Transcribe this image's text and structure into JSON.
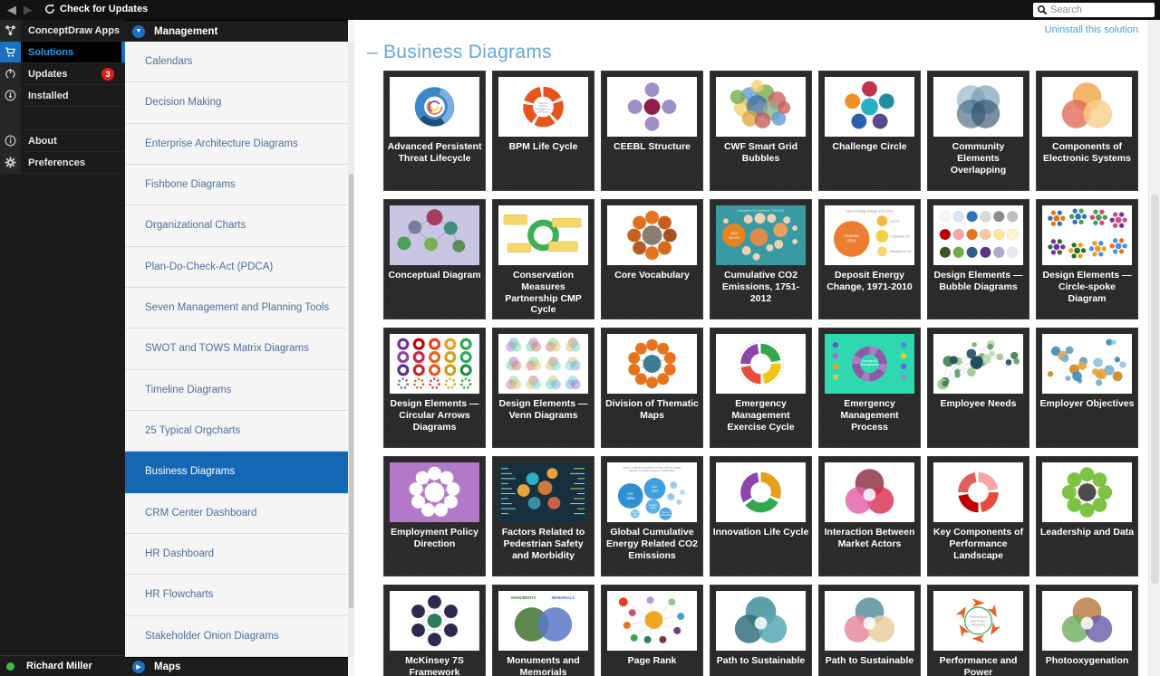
{
  "topbar": {
    "check_updates_label": "Check for Updates",
    "search_placeholder": "Search"
  },
  "app_nav": {
    "items": [
      {
        "label": "ConceptDraw Apps",
        "icon": "apps-icon",
        "group": "top",
        "selected": false
      },
      {
        "label": "Solutions",
        "icon": "cart-icon",
        "group": "top",
        "selected": true
      },
      {
        "label": "Updates",
        "icon": "update-icon",
        "group": "top",
        "selected": false,
        "badge": "3"
      },
      {
        "label": "Installed",
        "icon": "download-icon",
        "group": "top",
        "selected": false
      },
      {
        "label": "About",
        "icon": "info-icon",
        "group": "bottom",
        "selected": false
      },
      {
        "label": "Preferences",
        "icon": "gear-icon",
        "group": "bottom",
        "selected": false
      }
    ],
    "user": {
      "name": "Richard Miller",
      "status_color": "#3dbb3d"
    }
  },
  "solution_nav": {
    "header_label": "Management",
    "footer_label": "Maps",
    "selected": "Business Diagrams",
    "items": [
      "Calendars",
      "Decision Making",
      "Enterprise Architecture Diagrams",
      "Fishbone Diagrams",
      "Organizational Charts",
      "Plan-Do-Check-Act (PDCA)",
      "Seven Management and Planning Tools",
      "SWOT and TOWS Matrix Diagrams",
      "Timeline Diagrams",
      "25 Typical Orgcharts",
      "Business Diagrams",
      "CRM Center Dashboard",
      "HR Dashboard",
      "HR Flowcharts",
      "Stakeholder Onion Diagrams"
    ]
  },
  "main": {
    "uninstall_link": "Uninstall this solution",
    "section_prefix": "–",
    "section_title": "Business Diagrams",
    "cards": [
      {
        "label": "Advanced Persistent Threat Lifecycle",
        "thumb": {
          "type": "apt",
          "bg": "#ffffff",
          "colors": [
            "#3b87c8",
            "#7ab0e0",
            "#1f4e79",
            "#ed7d31",
            "#7030a0",
            "#ffc000"
          ]
        }
      },
      {
        "label": "BPM Life Cycle",
        "thumb": {
          "type": "ring",
          "bg": "#ffffff",
          "colors": [
            "#e8541d"
          ],
          "segments": 5,
          "center_text": "Business\nProcess\nManagement\nLife-Cycle"
        }
      },
      {
        "label": "CEEBL Structure",
        "thumb": {
          "type": "radial",
          "bg": "#ffffff",
          "n": 4,
          "layout": "cross",
          "center": "#8e1f4b",
          "sat": [
            "#9f8fc7"
          ],
          "orbit": 19,
          "satR": 8,
          "centerR": 9
        }
      },
      {
        "label": "CWF Smart Grid Bubbles",
        "thumb": {
          "type": "cluster",
          "bg": "#ffffff",
          "colors": [
            "#5b9bd5",
            "#70ad47",
            "#cc5c5c",
            "#f5cf6e",
            "#44729e",
            "#86b386",
            "#e0a83c",
            "#c55a5a"
          ]
        }
      },
      {
        "label": "Challenge Circle",
        "thumb": {
          "type": "radial",
          "bg": "#ffffff",
          "n": 5,
          "center": "#2ab0c5",
          "sat": [
            "#c0314b",
            "#1d8f9e",
            "#5b4a8e",
            "#2c5fb0",
            "#f09122"
          ],
          "orbit": 20,
          "satR": 8.5,
          "centerR": 9.5
        }
      },
      {
        "label": "Community Elements Overlapping",
        "thumb": {
          "type": "venn",
          "bg": "#ffffff",
          "op": 0.65,
          "circles": [
            [
              42,
              25,
              16,
              "#8fb0c4"
            ],
            [
              58,
              25,
              16,
              "#6f98b2"
            ],
            [
              42,
              41,
              16,
              "#41657e"
            ],
            [
              58,
              41,
              16,
              "#33526b"
            ]
          ]
        }
      },
      {
        "label": "Components of Electronic Systems",
        "thumb": {
          "type": "venn",
          "bg": "#ffffff",
          "op": 0.8,
          "circles": [
            [
              50,
              22,
              16,
              "#f2a444"
            ],
            [
              38,
              41,
              16,
              "#e46c5a"
            ],
            [
              62,
              41,
              16,
              "#f7d08a"
            ]
          ]
        }
      },
      {
        "label": "Conceptual Diagram",
        "thumb": {
          "type": "tree",
          "bg": "#c9c6e3",
          "colors": [
            "#a63d5f",
            "#7a7a9d",
            "#3f8f7f",
            "#4aa05f",
            "#77b055",
            "#5a8f5a"
          ]
        }
      },
      {
        "label": "Conservation Measures Partnership CMP Cycle",
        "thumb": {
          "type": "cycle",
          "bg": "#ffffff",
          "colors": [
            "#3bb054",
            "#f5d76e"
          ]
        }
      },
      {
        "label": "Core Vocabulary",
        "thumb": {
          "type": "radial",
          "bg": "#ffffff",
          "n": 8,
          "center": "#8a7d72",
          "sat": [
            "#e8731c",
            "#c95c1e",
            "#a8521f",
            "#d86a1e",
            "#e8731c",
            "#b85a1e",
            "#c9621e",
            "#e07020"
          ],
          "orbit": 20,
          "satR": 7.5,
          "centerR": 11
        }
      },
      {
        "label": "Cumulative CO2 Emissions, 1751-2012",
        "thumb": {
          "type": "bubbles",
          "bg": "#3a9aa3",
          "title": "Cumulative CO₂ emissions, 1751-2012",
          "title_color": "#ffffff",
          "circles": [
            [
              20,
              33,
              13,
              "#e8821e",
              "USA\n26.0%",
              "#ffffff"
            ],
            [
              48,
              35,
              10,
              "#dd8a4a"
            ],
            [
              72,
              27,
              8,
              "#e8a05a"
            ],
            [
              36,
              15,
              5,
              "#ecd2b4"
            ],
            [
              49,
              14,
              6,
              "#ecd2b4"
            ],
            [
              62,
              14,
              5,
              "#ecd2b4"
            ],
            [
              79,
              16,
              4,
              "#ecd2b4"
            ],
            [
              88,
              25,
              3,
              "#ecd2b4"
            ],
            [
              34,
              50,
              5,
              "#ecd2b4"
            ],
            [
              60,
              47,
              4,
              "#ecd2b4"
            ],
            [
              45,
              57,
              4,
              "#ecd2b4"
            ],
            [
              88,
              40,
              3,
              "#ecd2b4"
            ],
            [
              11,
              17,
              3,
              "#ecd2b4"
            ],
            [
              70,
              43,
              5,
              "#ecd2b4"
            ]
          ]
        }
      },
      {
        "label": "Deposit Energy Change, 1971-2010",
        "thumb": {
          "type": "bigsmall",
          "bg": "#ffffff",
          "title": "Deposit energy change, 1971-2010",
          "big": {
            "color": "#ed7d31",
            "label": "Oceans\n93%"
          },
          "smalls": [
            {
              "color": "#f5b942",
              "label": "Ice 3%"
            },
            {
              "color": "#f5cf42",
              "label": "Continents 3%"
            },
            {
              "color": "#f5d76e",
              "label": "Atmosphere 1%"
            }
          ]
        }
      },
      {
        "label": "Design Elements — Bubble Diagrams",
        "thumb": {
          "type": "bubblegrid",
          "bg": "#ffffff",
          "rows": [
            [
              "#f7f7f7",
              "#d6e8f7",
              "#2e74b5",
              "#d9d9d9",
              "#8c8c8c",
              "#bfbfbf"
            ],
            [
              "#c00000",
              "#f4a6a6",
              "#e8731c",
              "#f7c89a",
              "#ffe699",
              "#fff2cc"
            ],
            [
              "#375623",
              "#70ad47",
              "#2e5e8c",
              "#5a3286",
              "#b4a7d6",
              "#e8e8f5"
            ]
          ]
        }
      },
      {
        "label": "Design Elements — Circle-spoke Diagram",
        "thumb": {
          "type": "dotclusters",
          "bg": "#ffffff",
          "colors": [
            "#e8731c",
            "#2e74b5",
            "#46a049",
            "#d4447c",
            "#7030a0",
            "#2f6f1f",
            "#e8a01c",
            "#4a90d9"
          ]
        }
      },
      {
        "label": "Design Elements — Circular Arrows Diagrams",
        "thumb": {
          "type": "ringgrid",
          "bg": "#ffffff",
          "colors": [
            "#7030a0",
            "#c00000",
            "#e8421c",
            "#e8a01c",
            "#2fa84f",
            "#8e44ad",
            "#d91e4a",
            "#e8641c",
            "#d4a017",
            "#27ae60",
            "#5a2d8e",
            "#c02a2a",
            "#e85a1c",
            "#c9a01c",
            "#1f8f3f",
            "#7a7a7a",
            "#d96a2a",
            "#c94a4a",
            "#caa62a",
            "#2fa84f"
          ]
        }
      },
      {
        "label": "Design Elements — Venn Diagrams",
        "thumb": {
          "type": "venngrid",
          "bg": "#ffffff",
          "colors": [
            "#7fb2d9",
            "#b07fd9",
            "#7fd9a8",
            "#d97f7f",
            "#d9c97f",
            "#7fd9d9"
          ]
        }
      },
      {
        "label": "Division of Thematic Maps",
        "thumb": {
          "type": "radial",
          "bg": "#ffffff",
          "n": 10,
          "center": "#3a7d8c",
          "sat": [
            "#e8731c"
          ],
          "orbit": 21,
          "satR": 6.5,
          "centerR": 10
        }
      },
      {
        "label": "Emergency Management Exercise Cycle",
        "thumb": {
          "type": "ring",
          "bg": "#ffffff",
          "colors": [
            "#2fa84f",
            "#f0c419",
            "#e84c3d",
            "#8e44ad"
          ],
          "segments": 4,
          "dotring": true
        }
      },
      {
        "label": "Emergency Management Process",
        "thumb": {
          "type": "purplering",
          "bg": "#2ed9b0",
          "colors": [
            "#8e5aa8",
            "#a87ec2"
          ],
          "center_text": "Emergency\nManagement"
        }
      },
      {
        "label": "Employee Needs",
        "thumb": {
          "type": "scatter",
          "bg": "#ffffff",
          "colors": [
            "#6fae5f",
            "#9cc98a",
            "#3f7d52",
            "#1d4f5e",
            "#b9d9a8",
            "#5a9e6f"
          ],
          "n": 24,
          "seed": 7,
          "links": true,
          "centerBig": "#1d4f5e"
        }
      },
      {
        "label": "Employer Objectives",
        "thumb": {
          "type": "scatter",
          "bg": "#ffffff",
          "colors": [
            "#6fb3d9",
            "#3f89b5",
            "#e8a23c",
            "#c9861f",
            "#8fc3e0",
            "#5aa0c9"
          ],
          "n": 22,
          "seed": 11,
          "links": false
        }
      },
      {
        "label": "Employment Policy Direction",
        "thumb": {
          "type": "radial",
          "bg": "#b279c9",
          "n": 9,
          "center": "#ffffff",
          "sat": [
            "#ffffff"
          ],
          "orbit": 21,
          "satR": 7.5,
          "centerR": 11,
          "line": "#e8d5f0"
        }
      },
      {
        "label": "Factors Related to Pedestrian Safety and Morbidity",
        "thumb": {
          "type": "darkscatter",
          "bg": "#16303e",
          "colors": [
            "#2ab0c5",
            "#e8a23c",
            "#c97a3c",
            "#3a8fa3",
            "#c9604a",
            "#e8a23c"
          ]
        }
      },
      {
        "label": "Global Cumulative Energy Related CO2 Emissions",
        "thumb": {
          "type": "bubbles",
          "bg": "#ffffff",
          "title": "Share of global cumulative energy related carbon\ndioxide emissions between 1850-2007",
          "title_color": "#8a8a8a",
          "circles": [
            [
              26,
              37,
              14,
              "#2e8fd0",
              "US:\n28%",
              "#ffffff"
            ],
            [
              53,
              29,
              12,
              "#3da0dc",
              "EU:\n23%",
              "#ffffff"
            ],
            [
              51,
              49,
              8,
              "#5ab0e0",
              "Russia\n11%",
              "#ffffff"
            ],
            [
              31,
              57,
              5,
              "#7ac0e8",
              "China\n9%",
              "#ffffff"
            ],
            [
              65,
              57,
              7,
              "#4aa8dc",
              "Rest of\nworld 18%",
              "#ffffff"
            ],
            [
              71,
              38,
              4,
              "#8fc8ec"
            ],
            [
              80,
              44,
              3,
              "#a8d4f0"
            ],
            [
              74,
              25,
              4,
              "#98cce8"
            ],
            [
              84,
              33,
              3,
              "#b8dcf4"
            ]
          ]
        }
      },
      {
        "label": "Innovation Life Cycle",
        "thumb": {
          "type": "ring",
          "bg": "#ffffff",
          "colors": [
            "#e8a01c",
            "#2fa84f",
            "#8e44ad"
          ],
          "segments": 3
        }
      },
      {
        "label": "Interaction Between Market Actors",
        "thumb": {
          "type": "venn",
          "bg": "#ffffff",
          "op": 0.82,
          "centerWhite": true,
          "circles": [
            [
              50,
              23,
              16,
              "#8c2f3f"
            ],
            [
              62,
              42,
              15,
              "#d93050"
            ],
            [
              38,
              42,
              15,
              "#e060a8"
            ]
          ]
        }
      },
      {
        "label": "Key Components of Performance Landscape",
        "thumb": {
          "type": "ring",
          "bg": "#ffffff",
          "colors": [
            "#f4a6a6",
            "#e84c3d",
            "#c00000",
            "#e06060"
          ],
          "segments": 4
        }
      },
      {
        "label": "Leadership and Data",
        "thumb": {
          "type": "radial",
          "bg": "#ffffff",
          "n": 8,
          "center": "#4d4d4d",
          "sat": [
            "#7dc242"
          ],
          "orbit": 20,
          "satR": 8,
          "centerR": 10
        }
      },
      {
        "label": "McKinsey 7S Framework",
        "thumb": {
          "type": "mesh",
          "bg": "#ffffff",
          "n": 6,
          "center": "#2f7d5f",
          "sat": "#2e2a4f"
        }
      },
      {
        "label": "Monuments and Memorials",
        "thumb": {
          "type": "venn2",
          "bg": "#ffffff",
          "colors": [
            "#4e7d3f",
            "#5a78c9"
          ],
          "headers": [
            "MONUMENTS",
            "MEMORIALS"
          ],
          "headerColors": [
            "#3f7d2f",
            "#4a6ad9"
          ]
        }
      },
      {
        "label": "Page Rank",
        "thumb": {
          "type": "star",
          "bg": "#ffffff",
          "center": "#f0a822",
          "colors": [
            "#e8421c",
            "#c05a7a",
            "#e8731c",
            "#2fa84f",
            "#2f7d5f",
            "#7d2f4f",
            "#6a3f8e",
            "#46a0c9",
            "#8fc98a",
            "#b49ad9"
          ]
        }
      },
      {
        "label": "Path to Sustainable",
        "thumb": {
          "type": "venn",
          "bg": "#ffffff",
          "op": 0.85,
          "centerWhite": true,
          "circles": [
            [
              50,
              23,
              17,
              "#3f8f9e"
            ],
            [
              37,
              42,
              16,
              "#35707f"
            ],
            [
              63,
              42,
              16,
              "#58a8b5"
            ]
          ]
        }
      },
      {
        "label": "Path to Sustainable",
        "thumb": {
          "type": "venn",
          "bg": "#ffffff",
          "op": 0.85,
          "centerWhite": true,
          "circles": [
            [
              50,
              23,
              16,
              "#5a8f9c"
            ],
            [
              37,
              42,
              15,
              "#e88a9c"
            ],
            [
              63,
              42,
              15,
              "#e8cfa0"
            ]
          ]
        }
      },
      {
        "label": "Performance and Power",
        "thumb": {
          "type": "arrowcycle",
          "bg": "#ffffff",
          "color": "#f05a22",
          "ringColor": "#2fa84f",
          "center_text": "Performance\nand Power\nModeling"
        }
      },
      {
        "label": "Photooxygenation",
        "thumb": {
          "type": "venn",
          "bg": "#ffffff",
          "op": 0.8,
          "centerWhite": true,
          "circles": [
            [
              50,
              23,
              16,
              "#b5773f"
            ],
            [
              37,
              42,
              15,
              "#6fae5f"
            ],
            [
              63,
              42,
              15,
              "#6a5aa8"
            ]
          ]
        }
      }
    ]
  },
  "colors": {
    "accent_blue": "#1a70c2",
    "selected_item_bg": "#1467b3",
    "link_blue": "#41a0dc",
    "heading_blue": "#64a8d8",
    "badge_red": "#e02020",
    "status_green": "#3dbb3d"
  }
}
